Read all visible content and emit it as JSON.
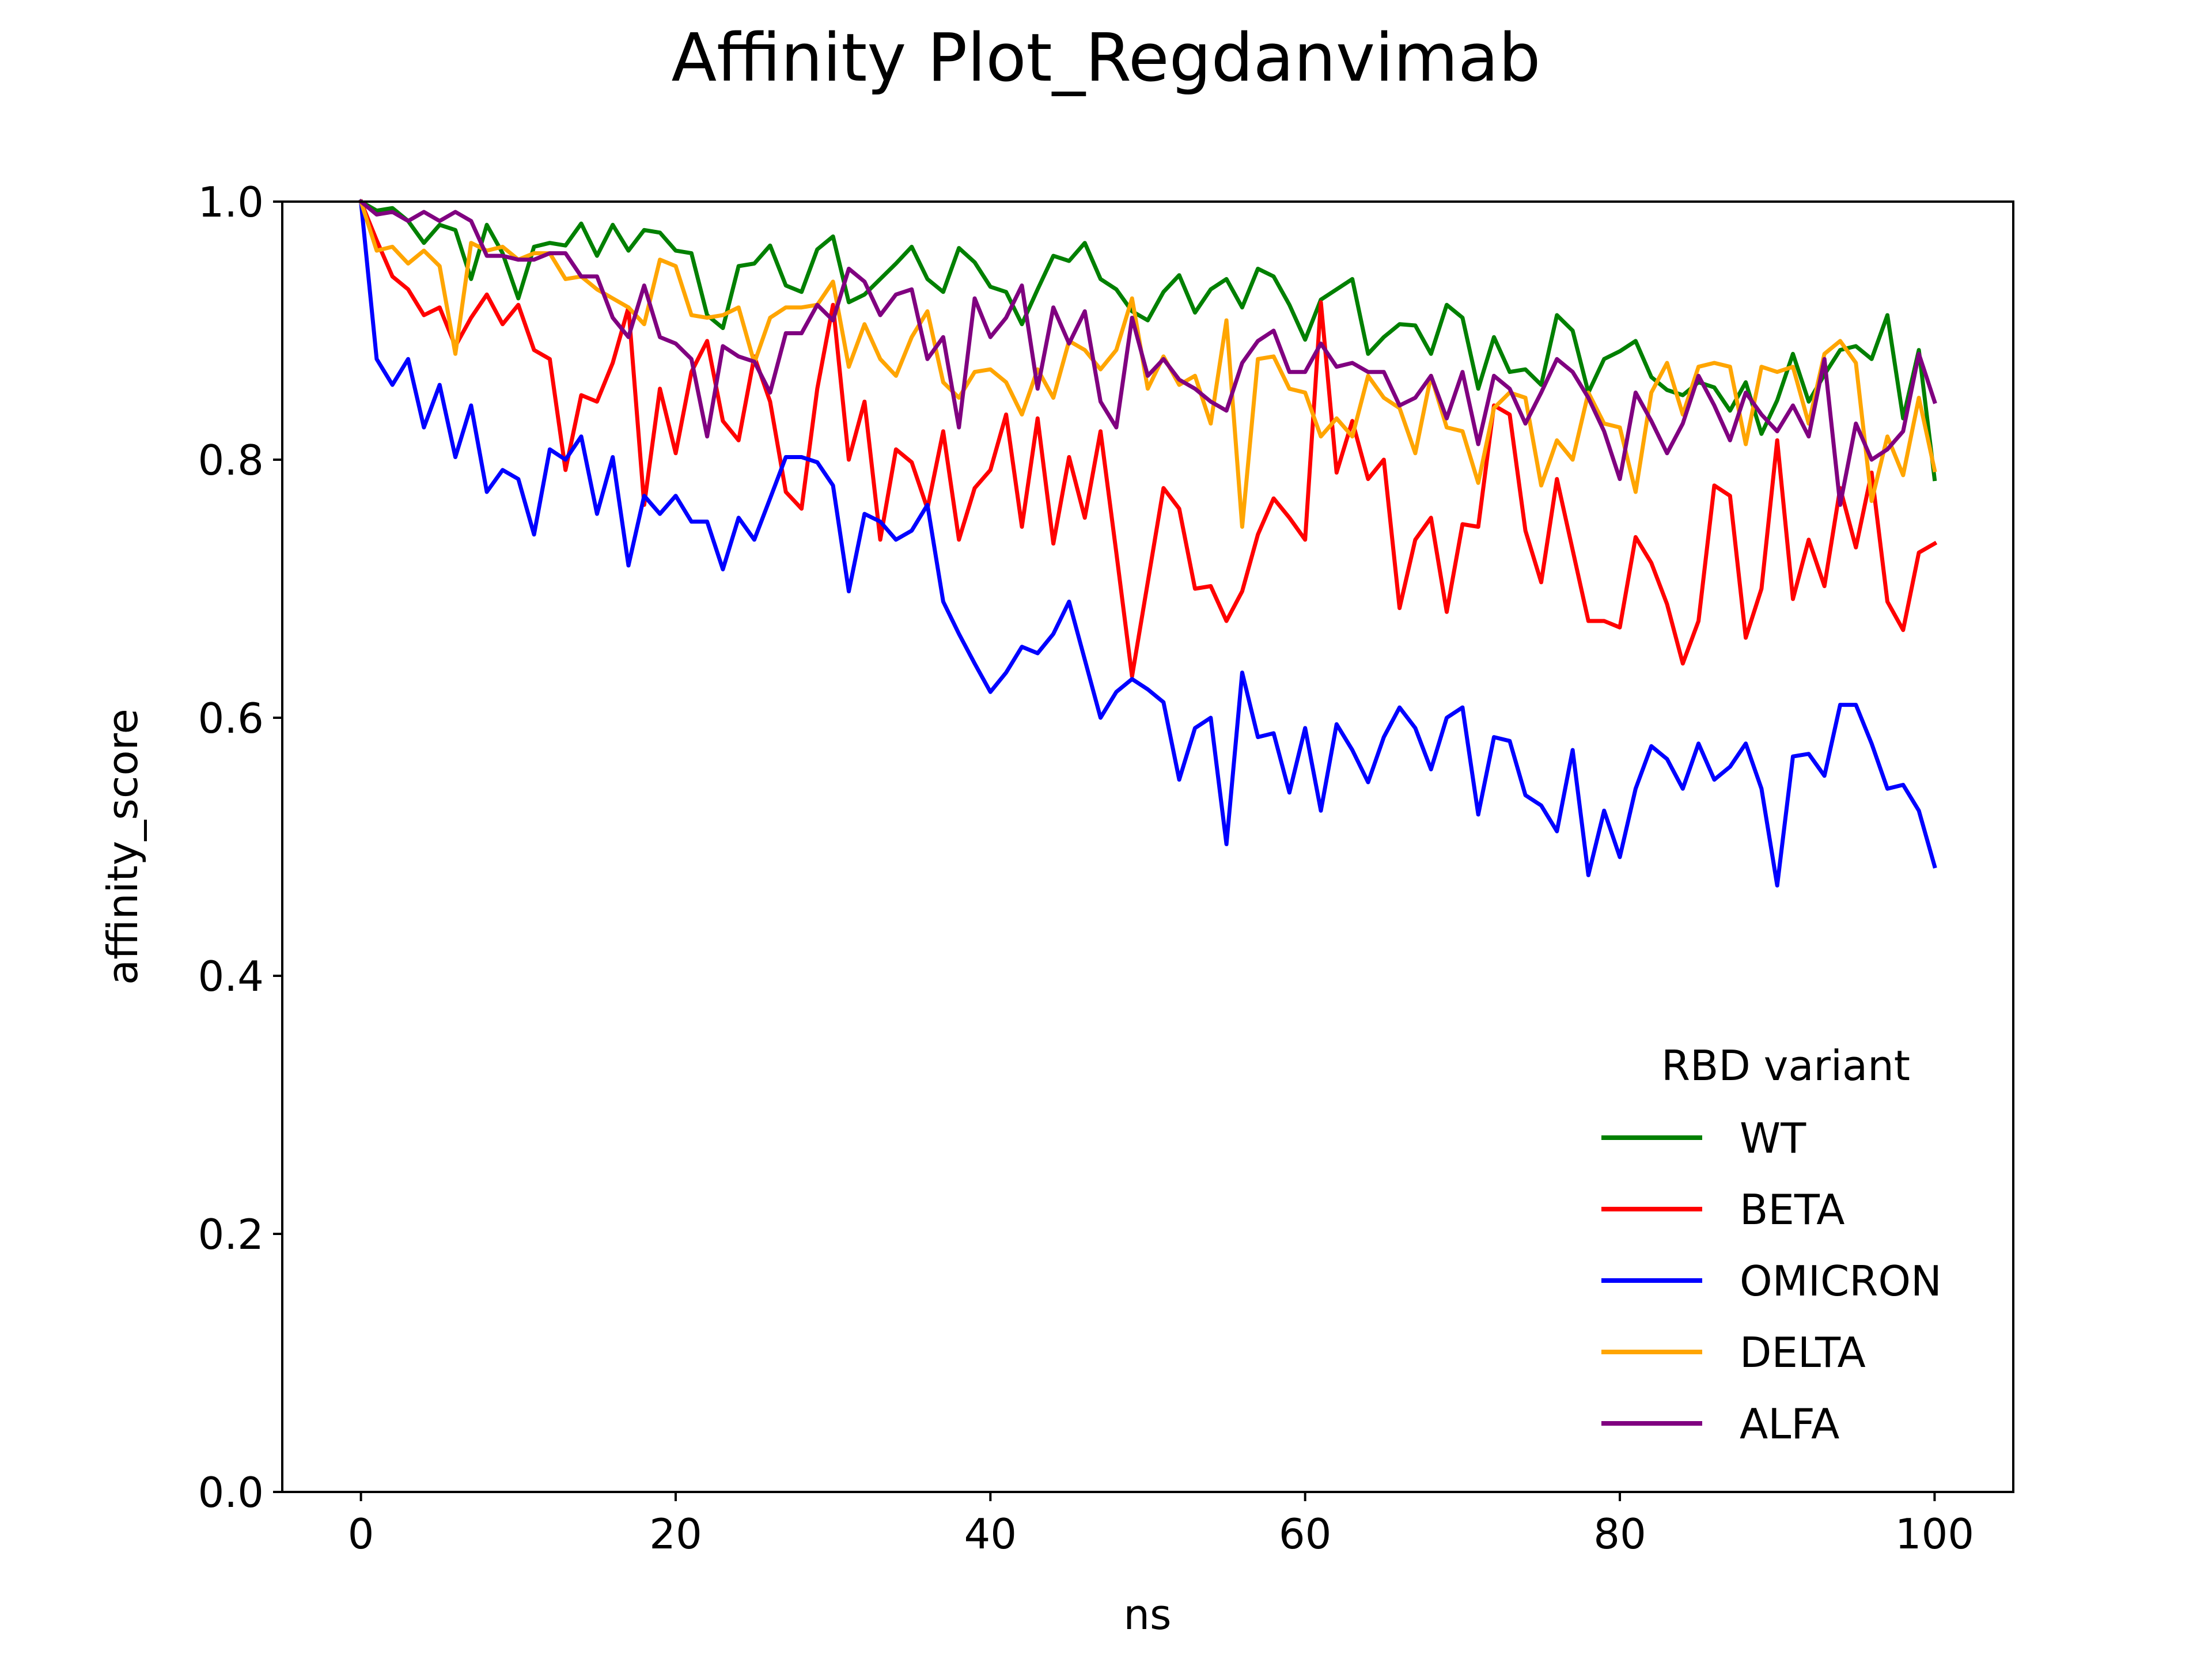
{
  "chart_data": {
    "type": "line",
    "title": "Affinity Plot_Regdanvimab",
    "xlabel": "ns",
    "ylabel": "affinity_score",
    "xlim": [
      -5,
      105
    ],
    "ylim": [
      0.0,
      1.0
    ],
    "x_ticks": [
      0,
      20,
      40,
      60,
      80,
      100
    ],
    "x_tick_labels": [
      "0",
      "20",
      "40",
      "60",
      "80",
      "100"
    ],
    "y_ticks": [
      0.0,
      0.2,
      0.4,
      0.6,
      0.8,
      1.0
    ],
    "y_tick_labels": [
      "0.0",
      "0.2",
      "0.4",
      "0.6",
      "0.8",
      "1.0"
    ],
    "grid": false,
    "legend": {
      "title": "RBD variant",
      "placement": "lower-right"
    },
    "x": [
      0,
      1,
      2,
      3,
      4,
      5,
      6,
      7,
      8,
      9,
      10,
      11,
      12,
      13,
      14,
      15,
      16,
      17,
      18,
      19,
      20,
      21,
      22,
      23,
      24,
      25,
      26,
      27,
      28,
      29,
      30,
      31,
      32,
      33,
      34,
      35,
      36,
      37,
      38,
      39,
      40,
      41,
      42,
      43,
      44,
      45,
      46,
      47,
      48,
      49,
      50,
      51,
      52,
      53,
      54,
      55,
      56,
      57,
      58,
      59,
      60,
      61,
      62,
      63,
      64,
      65,
      66,
      67,
      68,
      69,
      70,
      71,
      72,
      73,
      74,
      75,
      76,
      77,
      78,
      79,
      80,
      81,
      82,
      83,
      84,
      85,
      86,
      87,
      88,
      89,
      90,
      91,
      92,
      93,
      94,
      95,
      96,
      97,
      98,
      99,
      100
    ],
    "series": [
      {
        "name": "WT",
        "color": "#008000",
        "values": [
          1.0,
          0.993,
          0.995,
          0.985,
          0.968,
          0.982,
          0.978,
          0.94,
          0.982,
          0.96,
          0.925,
          0.965,
          0.968,
          0.966,
          0.983,
          0.958,
          0.982,
          0.962,
          0.978,
          0.976,
          0.962,
          0.96,
          0.912,
          0.902,
          0.95,
          0.952,
          0.966,
          0.935,
          0.93,
          0.963,
          0.973,
          0.922,
          0.928,
          0.94,
          0.952,
          0.965,
          0.94,
          0.93,
          0.964,
          0.953,
          0.934,
          0.93,
          0.905,
          0.932,
          0.958,
          0.954,
          0.968,
          0.94,
          0.932,
          0.915,
          0.908,
          0.93,
          0.943,
          0.914,
          0.932,
          0.94,
          0.918,
          0.948,
          0.942,
          0.92,
          0.893,
          0.924,
          0.932,
          0.94,
          0.882,
          0.895,
          0.905,
          0.904,
          0.882,
          0.92,
          0.91,
          0.855,
          0.895,
          0.868,
          0.87,
          0.858,
          0.912,
          0.9,
          0.852,
          0.878,
          0.884,
          0.892,
          0.864,
          0.854,
          0.85,
          0.86,
          0.856,
          0.838,
          0.86,
          0.82,
          0.846,
          0.882,
          0.845,
          0.866,
          0.885,
          0.888,
          0.878,
          0.912,
          0.832,
          0.885,
          0.785
        ]
      },
      {
        "name": "BETA",
        "color": "#ff0000",
        "values": [
          1.0,
          0.97,
          0.942,
          0.932,
          0.912,
          0.918,
          0.888,
          0.91,
          0.928,
          0.905,
          0.92,
          0.885,
          0.878,
          0.792,
          0.85,
          0.845,
          0.875,
          0.918,
          0.765,
          0.855,
          0.805,
          0.868,
          0.892,
          0.83,
          0.815,
          0.88,
          0.845,
          0.775,
          0.762,
          0.855,
          0.92,
          0.8,
          0.845,
          0.738,
          0.808,
          0.798,
          0.762,
          0.822,
          0.738,
          0.778,
          0.792,
          0.835,
          0.748,
          0.832,
          0.735,
          0.802,
          0.755,
          0.822,
          0.728,
          0.632,
          0.705,
          0.778,
          0.762,
          0.7,
          0.702,
          0.675,
          0.698,
          0.742,
          0.77,
          0.755,
          0.738,
          0.922,
          0.79,
          0.83,
          0.785,
          0.8,
          0.685,
          0.738,
          0.755,
          0.682,
          0.75,
          0.748,
          0.842,
          0.835,
          0.745,
          0.705,
          0.785,
          0.73,
          0.675,
          0.675,
          0.67,
          0.74,
          0.72,
          0.688,
          0.642,
          0.675,
          0.78,
          0.772,
          0.662,
          0.7,
          0.815,
          0.692,
          0.738,
          0.702,
          0.778,
          0.732,
          0.79,
          0.69,
          0.668,
          0.728,
          0.735
        ]
      },
      {
        "name": "OMICRON",
        "color": "#0000ff",
        "values": [
          1.0,
          0.878,
          0.858,
          0.878,
          0.825,
          0.858,
          0.802,
          0.842,
          0.775,
          0.792,
          0.785,
          0.742,
          0.808,
          0.8,
          0.818,
          0.758,
          0.802,
          0.718,
          0.772,
          0.758,
          0.772,
          0.752,
          0.752,
          0.715,
          0.755,
          0.738,
          0.77,
          0.802,
          0.802,
          0.798,
          0.78,
          0.698,
          0.758,
          0.752,
          0.738,
          0.745,
          0.765,
          0.69,
          0.665,
          0.642,
          0.62,
          0.635,
          0.655,
          0.65,
          0.665,
          0.69,
          0.645,
          0.6,
          0.62,
          0.63,
          0.622,
          0.612,
          0.552,
          0.592,
          0.6,
          0.502,
          0.635,
          0.585,
          0.588,
          0.542,
          0.592,
          0.528,
          0.595,
          0.575,
          0.55,
          0.585,
          0.608,
          0.592,
          0.56,
          0.6,
          0.608,
          0.525,
          0.585,
          0.582,
          0.54,
          0.532,
          0.512,
          0.575,
          0.478,
          0.528,
          0.492,
          0.545,
          0.578,
          0.568,
          0.545,
          0.58,
          0.552,
          0.562,
          0.58,
          0.545,
          0.47,
          0.57,
          0.572,
          0.555,
          0.61,
          0.61,
          0.58,
          0.545,
          0.548,
          0.528,
          0.485
        ]
      },
      {
        "name": "DELTA",
        "color": "#ffa500",
        "values": [
          1.0,
          0.962,
          0.965,
          0.952,
          0.962,
          0.95,
          0.882,
          0.968,
          0.962,
          0.965,
          0.955,
          0.96,
          0.96,
          0.94,
          0.942,
          0.932,
          0.925,
          0.918,
          0.905,
          0.955,
          0.95,
          0.912,
          0.91,
          0.912,
          0.918,
          0.875,
          0.91,
          0.918,
          0.918,
          0.92,
          0.938,
          0.872,
          0.905,
          0.878,
          0.865,
          0.895,
          0.915,
          0.86,
          0.848,
          0.868,
          0.87,
          0.86,
          0.835,
          0.87,
          0.848,
          0.892,
          0.885,
          0.87,
          0.885,
          0.925,
          0.855,
          0.88,
          0.858,
          0.865,
          0.828,
          0.908,
          0.748,
          0.878,
          0.88,
          0.855,
          0.852,
          0.818,
          0.832,
          0.818,
          0.865,
          0.848,
          0.84,
          0.805,
          0.865,
          0.825,
          0.822,
          0.782,
          0.84,
          0.852,
          0.848,
          0.78,
          0.815,
          0.8,
          0.852,
          0.828,
          0.825,
          0.775,
          0.852,
          0.875,
          0.835,
          0.872,
          0.875,
          0.872,
          0.812,
          0.872,
          0.868,
          0.872,
          0.828,
          0.882,
          0.892,
          0.875,
          0.768,
          0.818,
          0.788,
          0.848,
          0.792
        ]
      },
      {
        "name": "ALFA",
        "color": "#800080",
        "values": [
          1.0,
          0.99,
          0.992,
          0.985,
          0.992,
          0.985,
          0.992,
          0.985,
          0.958,
          0.958,
          0.955,
          0.955,
          0.96,
          0.96,
          0.942,
          0.942,
          0.91,
          0.895,
          0.935,
          0.895,
          0.89,
          0.878,
          0.818,
          0.888,
          0.88,
          0.876,
          0.852,
          0.898,
          0.898,
          0.92,
          0.908,
          0.948,
          0.938,
          0.912,
          0.928,
          0.932,
          0.878,
          0.895,
          0.825,
          0.925,
          0.895,
          0.91,
          0.935,
          0.855,
          0.918,
          0.89,
          0.915,
          0.845,
          0.825,
          0.91,
          0.865,
          0.878,
          0.862,
          0.855,
          0.845,
          0.838,
          0.875,
          0.892,
          0.9,
          0.868,
          0.868,
          0.89,
          0.872,
          0.875,
          0.868,
          0.868,
          0.842,
          0.848,
          0.865,
          0.832,
          0.868,
          0.812,
          0.865,
          0.855,
          0.828,
          0.852,
          0.878,
          0.868,
          0.848,
          0.822,
          0.785,
          0.852,
          0.83,
          0.805,
          0.828,
          0.865,
          0.842,
          0.815,
          0.852,
          0.835,
          0.822,
          0.842,
          0.818,
          0.878,
          0.765,
          0.828,
          0.8,
          0.808,
          0.822,
          0.882,
          0.845
        ]
      }
    ]
  }
}
